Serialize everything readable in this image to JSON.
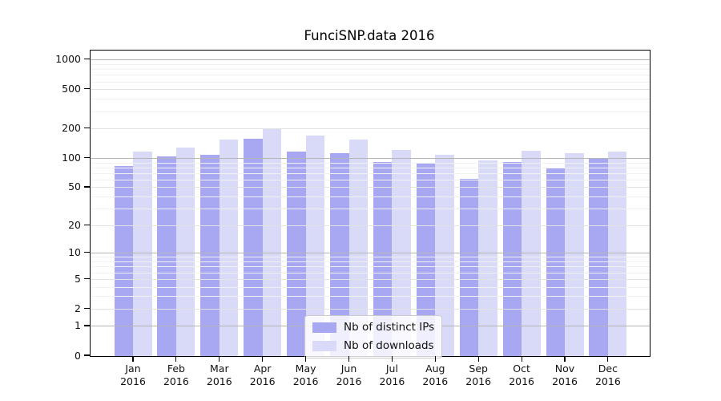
{
  "title": "FunciSNP.data 2016",
  "chart_data": {
    "type": "bar",
    "title": "FunciSNP.data 2016",
    "categories": [
      "Jan",
      "Feb",
      "Mar",
      "Apr",
      "May",
      "Jun",
      "Jul",
      "Aug",
      "Sep",
      "Oct",
      "Nov",
      "Dec"
    ],
    "x_tick_year": "2016",
    "series": [
      {
        "name": "Nb of distinct IPs",
        "color": "#a8a8f2",
        "values": [
          84,
          104,
          108,
          159,
          117,
          112,
          91,
          88,
          62,
          92,
          80,
          101
        ]
      },
      {
        "name": "Nb of downloads",
        "color": "#d9d9f8",
        "values": [
          118,
          130,
          157,
          200,
          170,
          157,
          122,
          108,
          95,
          120,
          112,
          118
        ]
      }
    ],
    "yscale": "log1p",
    "y_ticks": [
      0,
      1,
      2,
      5,
      10,
      20,
      50,
      100,
      200,
      500,
      1000
    ],
    "ylim": [
      0,
      1250
    ],
    "xlabel": "",
    "ylabel": "",
    "grid": "both",
    "legend_position": "lower-center",
    "colors": {
      "grid_major": "#b5b5b5",
      "grid_mid": "#e2e2e2",
      "grid_minor": "#f1f1f1",
      "axis": "#000000",
      "background": "#ffffff"
    }
  }
}
